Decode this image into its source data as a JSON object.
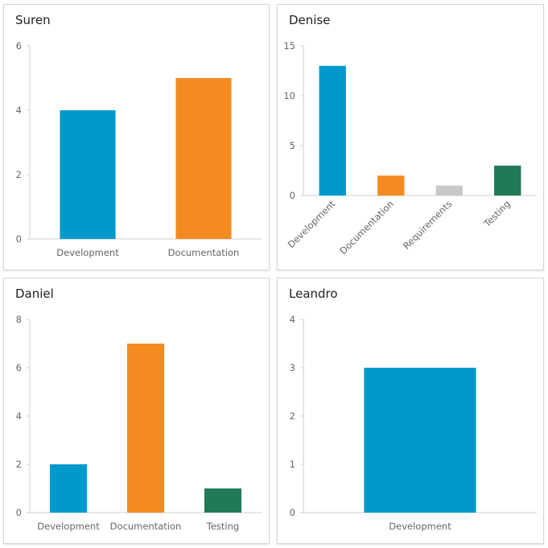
{
  "chart_data": [
    {
      "type": "bar",
      "title": "Suren",
      "categories": [
        "Development",
        "Documentation"
      ],
      "values": [
        4,
        5
      ],
      "colors": [
        "#0099cc",
        "#f38b20"
      ],
      "yticks": [
        0,
        2,
        4,
        6
      ],
      "ylim": [
        0,
        6
      ],
      "rotate_labels": false
    },
    {
      "type": "bar",
      "title": "Denise",
      "categories": [
        "Development",
        "Documentation",
        "Requirements",
        "Testing"
      ],
      "values": [
        13,
        2,
        1,
        3
      ],
      "colors": [
        "#0099cc",
        "#f38b20",
        "#c8c8c8",
        "#217a56"
      ],
      "yticks": [
        0,
        5,
        10,
        15
      ],
      "ylim": [
        0,
        15
      ],
      "rotate_labels": true
    },
    {
      "type": "bar",
      "title": "Daniel",
      "categories": [
        "Development",
        "Documentation",
        "Testing"
      ],
      "values": [
        2,
        7,
        1
      ],
      "colors": [
        "#0099cc",
        "#f38b20",
        "#217a56"
      ],
      "yticks": [
        0,
        2,
        4,
        6,
        8
      ],
      "ylim": [
        0,
        8
      ],
      "rotate_labels": false
    },
    {
      "type": "bar",
      "title": "Leandro",
      "categories": [
        "Development"
      ],
      "values": [
        3
      ],
      "colors": [
        "#0099cc"
      ],
      "yticks": [
        0,
        1,
        2,
        3,
        4
      ],
      "ylim": [
        0,
        4
      ],
      "rotate_labels": false
    }
  ]
}
